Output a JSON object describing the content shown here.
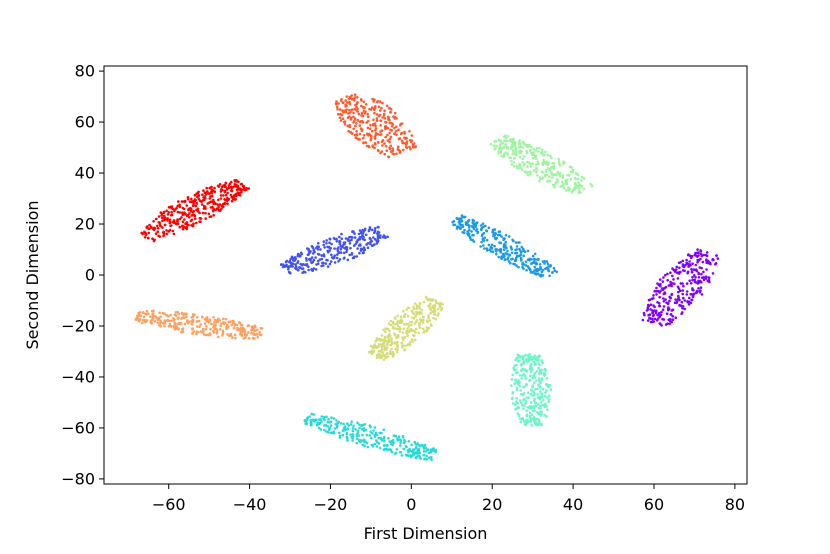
{
  "chart_data": {
    "type": "scatter",
    "title": "",
    "xlabel": "First Dimension",
    "ylabel": "Second Dimension",
    "xlim": [
      -76,
      83
    ],
    "ylim": [
      -82,
      82
    ],
    "xticks": [
      -60,
      -40,
      -20,
      0,
      20,
      40,
      60,
      80
    ],
    "yticks": [
      -80,
      -60,
      -40,
      -20,
      0,
      20,
      40,
      60,
      80
    ],
    "xtick_labels": [
      "−60",
      "−40",
      "−20",
      "0",
      "20",
      "40",
      "60",
      "80"
    ],
    "ytick_labels": [
      "−80",
      "−60",
      "−40",
      "−20",
      "0",
      "20",
      "40",
      "60",
      "80"
    ],
    "grid": false,
    "legend": "none",
    "colormap": "rainbow",
    "clusters": [
      {
        "color": "#ff0000",
        "n_points": 350,
        "start": [
          -66,
          15
        ],
        "end": [
          -42,
          36
        ],
        "half_width": 5
      },
      {
        "color": "#ff5a2e",
        "n_points": 300,
        "start": [
          -16,
          70
        ],
        "end": [
          -2,
          48
        ],
        "half_width": 7
      },
      {
        "color": "#9df5a0",
        "n_points": 300,
        "start": [
          21,
          53
        ],
        "end": [
          43,
          33
        ],
        "half_width": 5
      },
      {
        "color": "#4252f0",
        "n_points": 300,
        "start": [
          -31,
          2
        ],
        "end": [
          -7,
          17
        ],
        "half_width": 5
      },
      {
        "color": "#1a9ae6",
        "n_points": 300,
        "start": [
          11,
          22
        ],
        "end": [
          35,
          0
        ],
        "half_width": 4
      },
      {
        "color": "#8000ff",
        "n_points": 300,
        "start": [
          60,
          -19
        ],
        "end": [
          73,
          9
        ],
        "half_width": 6
      },
      {
        "color": "#ffa060",
        "n_points": 300,
        "start": [
          -68,
          -16
        ],
        "end": [
          -37,
          -23
        ],
        "half_width": 4
      },
      {
        "color": "#d6dc78",
        "n_points": 300,
        "start": [
          -9,
          -33
        ],
        "end": [
          6,
          -10
        ],
        "half_width": 5
      },
      {
        "color": "#6cf5c8",
        "n_points": 300,
        "start": [
          29,
          -31
        ],
        "end": [
          30,
          -59
        ],
        "half_width": 5
      },
      {
        "color": "#2ad8d8",
        "n_points": 300,
        "start": [
          -26,
          -56
        ],
        "end": [
          6,
          -71
        ],
        "half_width": 4
      }
    ]
  }
}
